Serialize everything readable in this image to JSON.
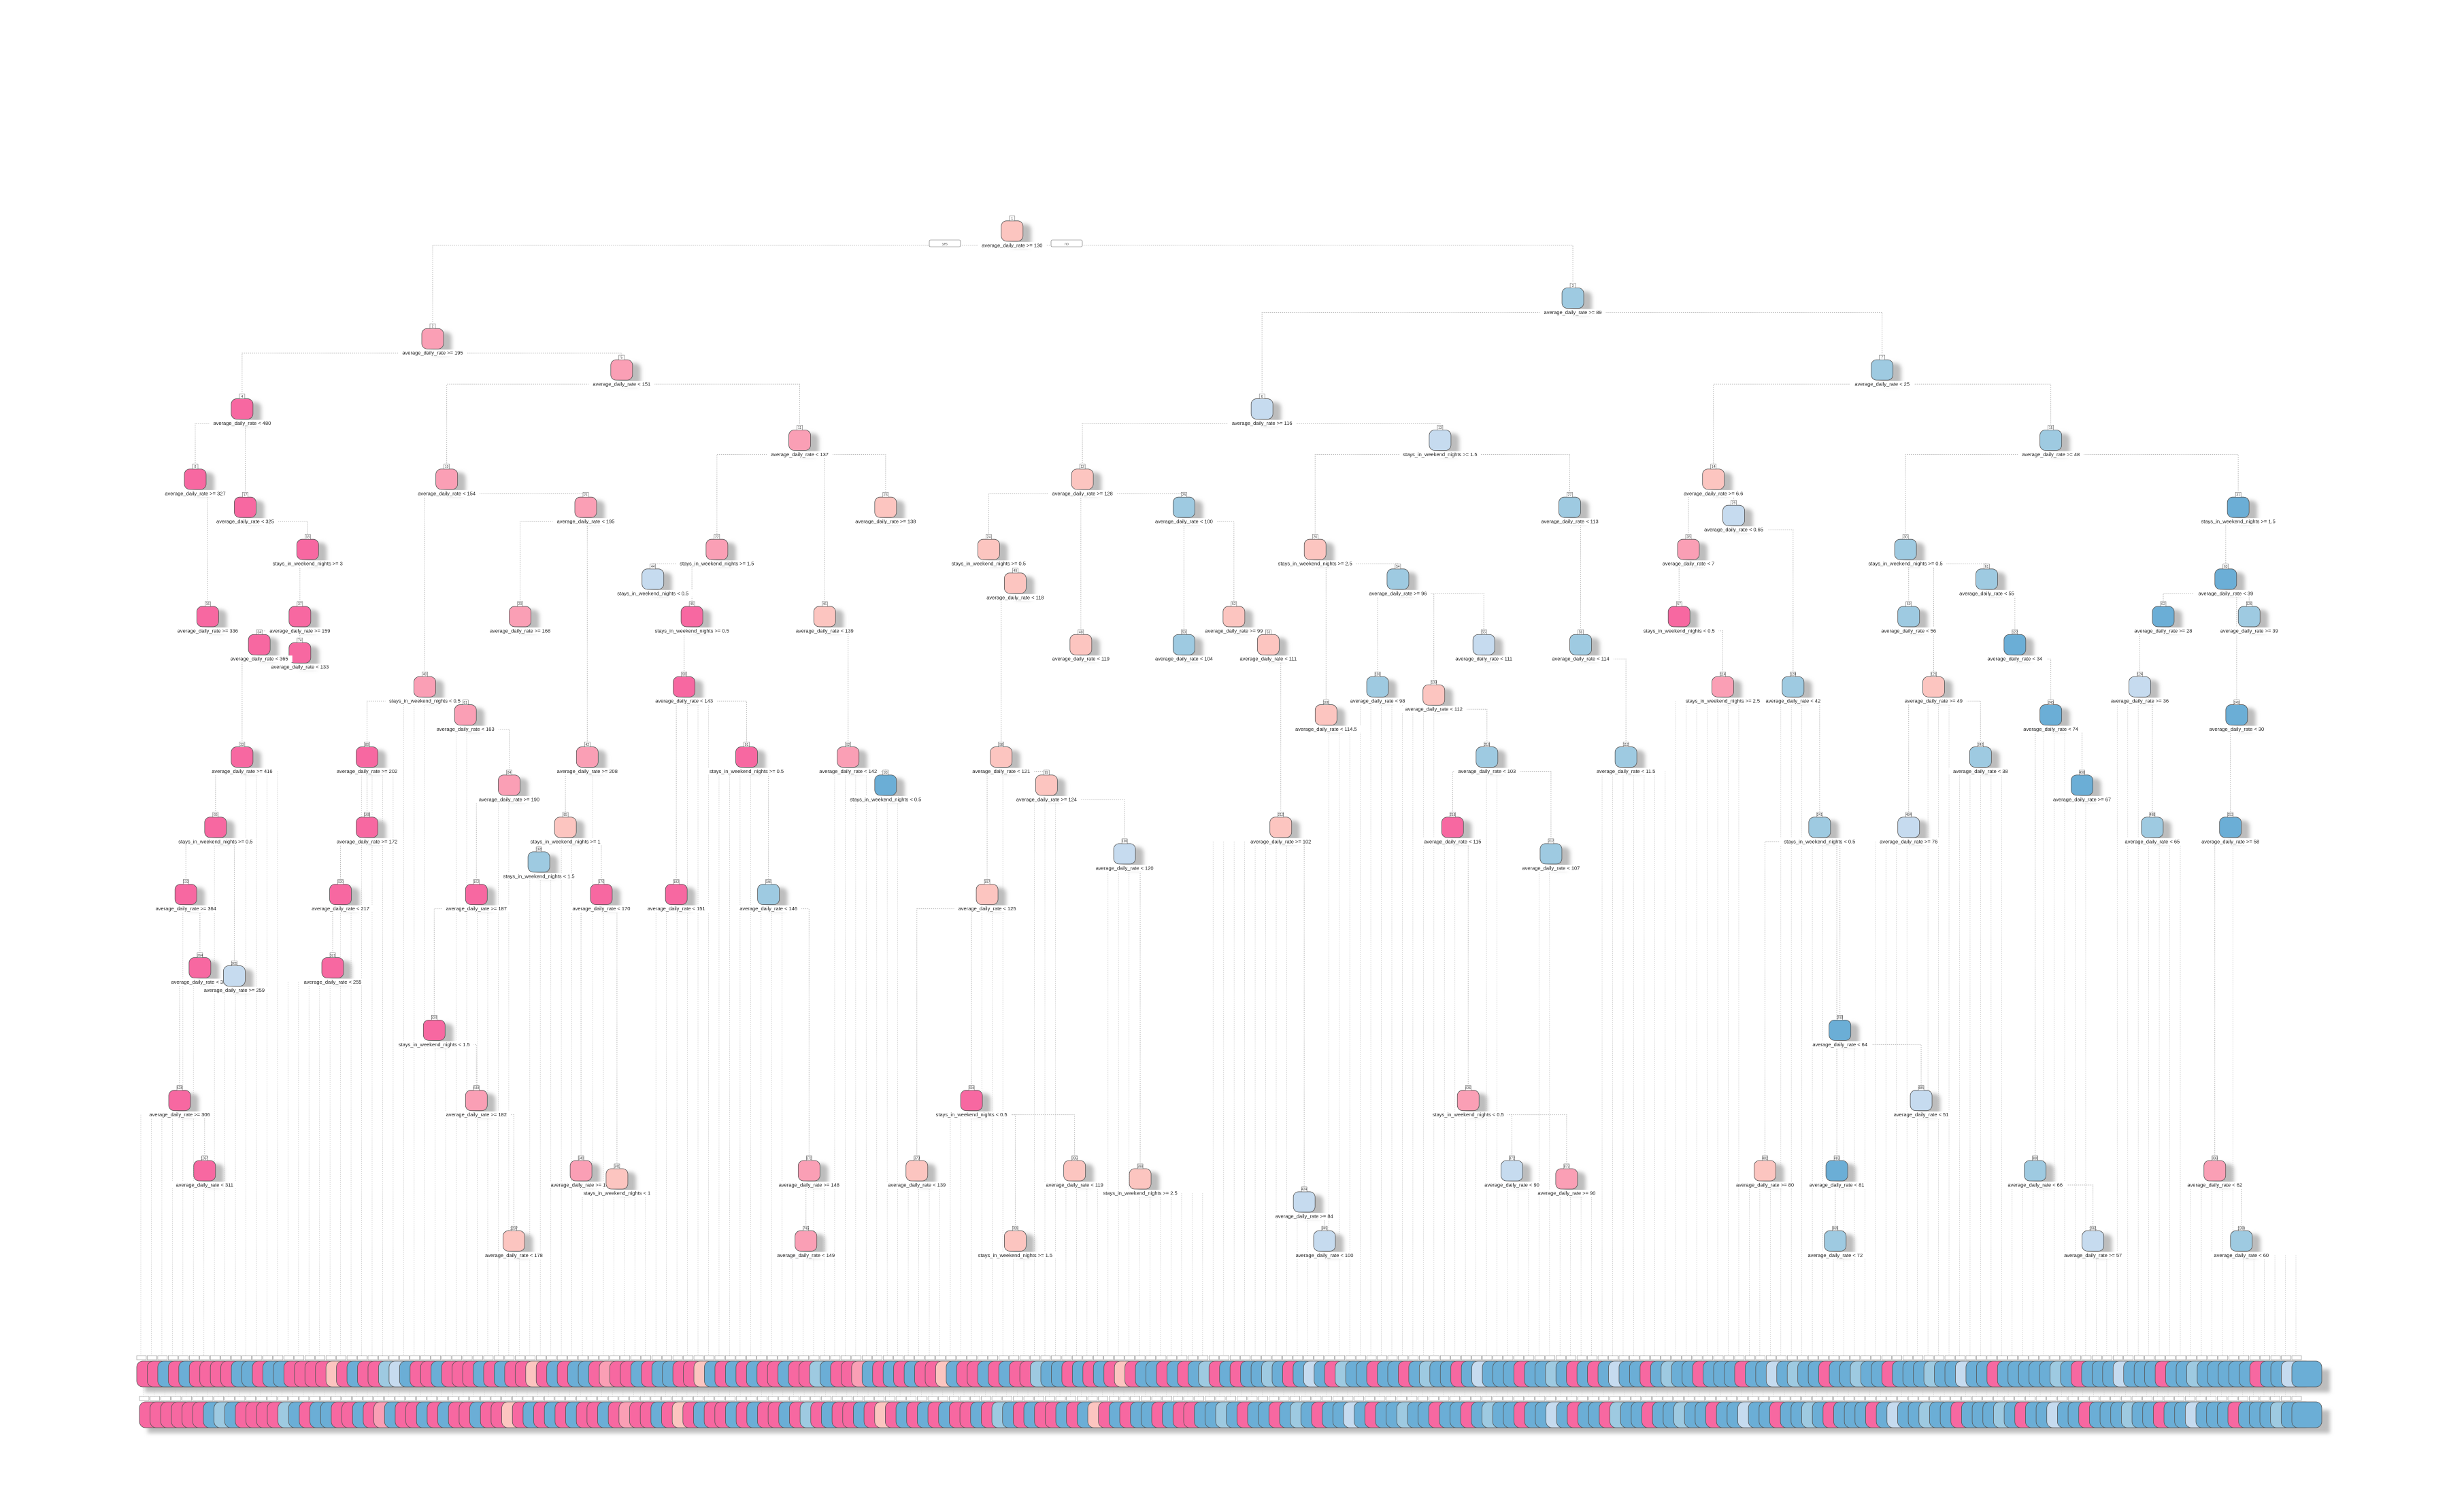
{
  "palette": {
    "M": "#f768a1",
    "P": "#fa9fb5",
    "S": "#fcc5c0",
    "L": "#c6dbef",
    "B": "#9ecae1",
    "D": "#6baed6"
  },
  "root_branch": {
    "yes_label": "yes",
    "no_label": "no"
  },
  "nodes": [
    {
      "num": "1",
      "label": "average_daily_rate >= 130",
      "color": "S"
    },
    {
      "num": "2",
      "label": "average_daily_rate >= 195",
      "color": "P"
    },
    {
      "num": "3",
      "label": "average_daily_rate >= 89",
      "color": "B"
    },
    {
      "num": "4",
      "label": "average_daily_rate < 480",
      "color": "M"
    },
    {
      "num": "5",
      "label": "average_daily_rate < 151",
      "color": "P"
    },
    {
      "num": "6",
      "label": "average_daily_rate >= 116",
      "color": "L"
    },
    {
      "num": "7",
      "label": "average_daily_rate < 25",
      "color": "B"
    },
    {
      "num": "8",
      "label": "average_daily_rate >= 327",
      "color": "M"
    },
    {
      "num": "10",
      "label": "average_daily_rate < 154",
      "color": "P"
    },
    {
      "num": "11",
      "label": "average_daily_rate < 137",
      "color": "P"
    },
    {
      "num": "12",
      "label": "average_daily_rate >= 128",
      "color": "S"
    },
    {
      "num": "13",
      "label": "stays_in_weekend_nights >= 1.5",
      "color": "L"
    },
    {
      "num": "14",
      "label": "average_daily_rate >= 6.6",
      "color": "S"
    },
    {
      "num": "15",
      "label": "average_daily_rate >= 48",
      "color": "B"
    },
    {
      "num": "17",
      "label": "average_daily_rate < 325",
      "color": "M"
    },
    {
      "num": "21",
      "label": "average_daily_rate < 195",
      "color": "P"
    },
    {
      "num": "23",
      "label": "average_daily_rate >= 138",
      "color": "S"
    },
    {
      "num": "25",
      "label": "average_daily_rate < 100",
      "color": "B"
    },
    {
      "num": "27",
      "label": "average_daily_rate < 113",
      "color": "B"
    },
    {
      "num": "29",
      "label": "average_daily_rate < 0.65",
      "color": "L"
    },
    {
      "num": "30",
      "label": "stays_in_weekend_nights >= 0.5",
      "color": "B"
    },
    {
      "num": "31",
      "label": "stays_in_weekend_nights >= 1.5",
      "color": "D"
    },
    {
      "num": "26",
      "label": "stays_in_weekend_nights >= 2.5",
      "color": "S"
    },
    {
      "num": "24",
      "label": "stays_in_weekend_nights >= 0.5",
      "color": "S"
    },
    {
      "num": "22",
      "label": "stays_in_weekend_nights >= 1.5",
      "color": "P"
    },
    {
      "num": "18",
      "label": "stays_in_weekend_nights >= 3",
      "color": "M"
    },
    {
      "num": "61",
      "label": "average_daily_rate < 55",
      "color": "B"
    },
    {
      "num": "28",
      "label": "average_daily_rate < 7",
      "color": "P"
    },
    {
      "num": "63",
      "label": "average_daily_rate < 39",
      "color": "D"
    },
    {
      "num": "54",
      "label": "average_daily_rate >= 96",
      "color": "B"
    },
    {
      "num": "44",
      "label": "stays_in_weekend_nights < 0.5",
      "color": "L"
    },
    {
      "num": "49",
      "label": "average_daily_rate < 118",
      "color": "S"
    },
    {
      "num": "37",
      "label": "average_daily_rate >= 159",
      "color": "M"
    },
    {
      "num": "74",
      "label": "average_daily_rate < 133",
      "color": "M"
    },
    {
      "num": "16",
      "label": "average_daily_rate >= 336",
      "color": "M"
    },
    {
      "num": "34",
      "label": "average_daily_rate < 365",
      "color": "M"
    },
    {
      "num": "20",
      "label": "average_daily_rate >= 168",
      "color": "P"
    },
    {
      "num": "40",
      "label": "stays_in_weekend_nights < 0.5",
      "color": "P"
    },
    {
      "num": "81",
      "label": "average_daily_rate < 163",
      "color": "P"
    },
    {
      "num": "33",
      "label": "average_daily_rate >= 416",
      "color": "M"
    },
    {
      "num": "66",
      "label": "stays_in_weekend_nights >= 0.5",
      "color": "M"
    },
    {
      "num": "132",
      "label": "average_daily_rate >= 364",
      "color": "M"
    },
    {
      "num": "80",
      "label": "average_daily_rate >= 202",
      "color": "M"
    },
    {
      "num": "160",
      "label": "average_daily_rate >= 172",
      "color": "M"
    },
    {
      "num": "320",
      "label": "average_daily_rate < 217",
      "color": "M"
    },
    {
      "num": "42",
      "label": "average_daily_rate >= 208",
      "color": "P"
    },
    {
      "num": "84",
      "label": "average_daily_rate >= 190",
      "color": "P"
    },
    {
      "num": "85",
      "label": "stays_in_weekend_nights >= 1",
      "color": "S"
    },
    {
      "num": "45",
      "label": "stays_in_weekend_nights >= 0.5",
      "color": "M"
    },
    {
      "num": "90",
      "label": "average_daily_rate < 143",
      "color": "M"
    },
    {
      "num": "91",
      "label": "stays_in_weekend_nights >= 0.5",
      "color": "M"
    },
    {
      "num": "46",
      "label": "average_daily_rate < 139",
      "color": "S"
    },
    {
      "num": "92",
      "label": "average_daily_rate < 142",
      "color": "P"
    },
    {
      "num": "93",
      "label": "stays_in_weekend_nights < 0.5",
      "color": "D"
    },
    {
      "num": "98",
      "label": "average_daily_rate < 121",
      "color": "S"
    },
    {
      "num": "99",
      "label": "average_daily_rate >= 124",
      "color": "S"
    },
    {
      "num": "48",
      "label": "average_daily_rate < 119",
      "color": "S"
    },
    {
      "num": "50",
      "label": "average_daily_rate < 104",
      "color": "B"
    },
    {
      "num": "52",
      "label": "average_daily_rate >= 99",
      "color": "S"
    },
    {
      "num": "53",
      "label": "average_daily_rate < 111",
      "color": "S"
    },
    {
      "num": "106",
      "label": "average_daily_rate < 114.5",
      "color": "S"
    },
    {
      "num": "108",
      "label": "average_daily_rate < 98",
      "color": "B"
    },
    {
      "num": "109",
      "label": "average_daily_rate < 112",
      "color": "S"
    },
    {
      "num": "216",
      "label": "average_daily_rate < 103",
      "color": "B"
    },
    {
      "num": "55",
      "label": "average_daily_rate < 111",
      "color": "L"
    },
    {
      "num": "56",
      "label": "average_daily_rate < 114",
      "color": "B"
    },
    {
      "num": "112",
      "label": "average_daily_rate < 11.5",
      "color": "B"
    },
    {
      "num": "57",
      "label": "stays_in_weekend_nights < 0.5",
      "color": "M"
    },
    {
      "num": "114",
      "label": "stays_in_weekend_nights >= 2.5",
      "color": "P"
    },
    {
      "num": "120",
      "label": "average_daily_rate < 42",
      "color": "B"
    },
    {
      "num": "121",
      "label": "average_daily_rate >= 49",
      "color": "S"
    },
    {
      "num": "60",
      "label": "average_daily_rate < 56",
      "color": "B"
    },
    {
      "num": "242",
      "label": "average_daily_rate < 38",
      "color": "B"
    },
    {
      "num": "122",
      "label": "average_daily_rate < 34",
      "color": "D"
    },
    {
      "num": "245",
      "label": "average_daily_rate < 74",
      "color": "D"
    },
    {
      "num": "62",
      "label": "average_daily_rate >= 28",
      "color": "D"
    },
    {
      "num": "124",
      "label": "average_daily_rate >= 36",
      "color": "L"
    },
    {
      "num": "249",
      "label": "average_daily_rate < 30",
      "color": "D"
    },
    {
      "num": "126",
      "label": "average_daily_rate >= 39",
      "color": "B"
    },
    {
      "num": "241",
      "label": "stays_in_weekend_nights < 0.5",
      "color": "B"
    },
    {
      "num": "490",
      "label": "average_daily_rate >= 67",
      "color": "D"
    },
    {
      "num": "498",
      "label": "average_daily_rate < 65",
      "color": "B"
    },
    {
      "num": "253",
      "label": "average_daily_rate >= 58",
      "color": "D"
    },
    {
      "num": "484",
      "label": "average_daily_rate >= 76",
      "color": "L"
    },
    {
      "num": "217",
      "label": "average_daily_rate < 107",
      "color": "B"
    },
    {
      "num": "218",
      "label": "average_daily_rate < 115",
      "color": "M"
    },
    {
      "num": "212",
      "label": "average_daily_rate >= 102",
      "color": "S"
    },
    {
      "num": "196",
      "label": "average_daily_rate < 120",
      "color": "L"
    },
    {
      "num": "197",
      "label": "average_daily_rate < 125",
      "color": "S"
    },
    {
      "num": "186",
      "label": "average_daily_rate < 146",
      "color": "B"
    },
    {
      "num": "182",
      "label": "average_daily_rate < 151",
      "color": "M"
    },
    {
      "num": "170",
      "label": "average_daily_rate < 170",
      "color": "M"
    },
    {
      "num": "168",
      "label": "stays_in_weekend_nights < 1.5",
      "color": "B"
    },
    {
      "num": "162",
      "label": "average_daily_rate >= 187",
      "color": "M"
    },
    {
      "num": "264",
      "label": "average_daily_rate < 388",
      "color": "M"
    },
    {
      "num": "265",
      "label": "average_daily_rate >= 259",
      "color": "L"
    },
    {
      "num": "321",
      "label": "average_daily_rate < 255",
      "color": "M"
    },
    {
      "num": "528",
      "label": "average_daily_rate >= 306",
      "color": "M"
    },
    {
      "num": "1057",
      "label": "average_daily_rate < 311",
      "color": "M"
    },
    {
      "num": "324",
      "label": "stays_in_weekend_nights < 1.5",
      "color": "M"
    },
    {
      "num": "648",
      "label": "average_daily_rate >= 182",
      "color": "P"
    },
    {
      "num": "1297",
      "label": "average_daily_rate < 178",
      "color": "S"
    },
    {
      "num": "340",
      "label": "average_daily_rate >= 168",
      "color": "P"
    },
    {
      "num": "341",
      "label": "stays_in_weekend_nights < 1",
      "color": "S"
    },
    {
      "num": "372",
      "label": "average_daily_rate >= 148",
      "color": "P"
    },
    {
      "num": "745",
      "label": "average_daily_rate < 149",
      "color": "P"
    },
    {
      "num": "373",
      "label": "average_daily_rate < 139",
      "color": "S"
    },
    {
      "num": "394",
      "label": "stays_in_weekend_nights < 0.5",
      "color": "M"
    },
    {
      "num": "789",
      "label": "stays_in_weekend_nights >= 1.5",
      "color": "S"
    },
    {
      "num": "395",
      "label": "average_daily_rate < 119",
      "color": "S"
    },
    {
      "num": "398",
      "label": "stays_in_weekend_nights >= 2.5",
      "color": "S"
    },
    {
      "num": "424",
      "label": "average_daily_rate >= 84",
      "color": "L"
    },
    {
      "num": "849",
      "label": "average_daily_rate < 100",
      "color": "L"
    },
    {
      "num": "436",
      "label": "stays_in_weekend_nights < 0.5",
      "color": "P"
    },
    {
      "num": "872",
      "label": "average_daily_rate < 90",
      "color": "L"
    },
    {
      "num": "873",
      "label": "average_daily_rate >= 90",
      "color": "P"
    },
    {
      "num": "482",
      "label": "average_daily_rate >= 80",
      "color": "S"
    },
    {
      "num": "483",
      "label": "average_daily_rate < 81",
      "color": "D"
    },
    {
      "num": "980",
      "label": "average_daily_rate < 66",
      "color": "B"
    },
    {
      "num": "1961",
      "label": "average_daily_rate >= 57",
      "color": "L"
    },
    {
      "num": "996",
      "label": "average_daily_rate < 62",
      "color": "P"
    },
    {
      "num": "1993",
      "label": "average_daily_rate < 60",
      "color": "B"
    },
    {
      "num": "240",
      "label": "average_daily_rate < 64",
      "color": "D"
    },
    {
      "num": "485",
      "label": "average_daily_rate < 51",
      "color": "L"
    },
    {
      "num": "969",
      "label": "average_daily_rate < 72",
      "color": "B"
    }
  ],
  "leaves": {
    "row1": "MMDMDMMMMDDMDDMMMMSMDMMBLDMMDMMMDMDMMSMDMDDMPMMDMDDMMSDMDMDMMDMMBDMMPDMDMDMMSDMMDMDMMBDDMDMDMSMDDMDMDBMDMDDBDMDLDMBDDMDDMDBDDMDLDDDMDDBDMDMDLDDMDBDDMDDDMDDLDBDDMDDBDDMDDDBDDLDDMDDDDDBDMDDDLDDDMDDBDDDDDMDDLD",
    "row2": "MMMMMMDBDMMMMBDMDDMMDMPDMMDMDMMDMMSMDMDMDMMDMPMMDMSMDMMDMDMMDMBMDMMDMSMDMDMDMMDMBDMDMMDMDSMDMDDMDMMDDBDMDDMDBDMDDLDMDDBDDMDDMDBDDMDDLDMDDMBDDMDDBDDMDDLDDMDDBDMDDDMDLDDBDDMDDDBDMDDLDDMDDDBDDMDDLDDDMDDDBDD"
  }
}
